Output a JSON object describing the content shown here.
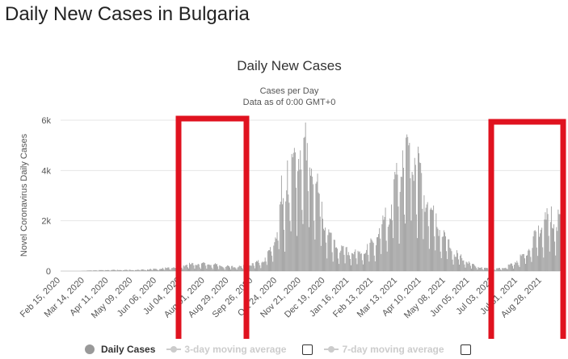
{
  "page": {
    "heading": "Daily New Cases in Bulgaria"
  },
  "chart_data": {
    "type": "bar",
    "title": "Daily New Cases",
    "subtitle_line1": "Cases per Day",
    "subtitle_line2": "Data as of 0:00 GMT+0",
    "ylabel": "Novel Coronavirus Daily Cases",
    "xlabel": "",
    "ylim": [
      0,
      6000
    ],
    "y_ticks": [
      0,
      2000,
      4000,
      6000
    ],
    "y_tick_labels": [
      "0",
      "2k",
      "4k",
      "6k"
    ],
    "x_tick_labels": [
      "Feb 15, 2020",
      "Mar 14, 2020",
      "Apr 11, 2020",
      "May 09, 2020",
      "Jun 06, 2020",
      "Jul 04, 2020",
      "Aug 01, 2020",
      "Aug 29, 2020",
      "Sep 26, 2020",
      "Oct 24, 2020",
      "Nov 21, 2020",
      "Dec 19, 2020",
      "Jan 16, 2021",
      "Feb 13, 2021",
      "Mar 13, 2021",
      "Apr 10, 2021",
      "May 08, 2021",
      "Jun 05, 2021",
      "Jul 03, 2021",
      "Jul 31, 2021",
      "Aug 28, 2021"
    ],
    "start_date": "2020-02-15",
    "x_range": [
      "2020-02-15",
      "2021-09-18"
    ],
    "series": [
      {
        "name": "Daily Cases",
        "color": "#999999",
        "keypoints": [
          [
            "2020-02-15",
            0
          ],
          [
            "2020-03-08",
            0
          ],
          [
            "2020-03-20",
            20
          ],
          [
            "2020-04-15",
            40
          ],
          [
            "2020-05-15",
            40
          ],
          [
            "2020-06-10",
            80
          ],
          [
            "2020-06-25",
            130
          ],
          [
            "2020-07-10",
            220
          ],
          [
            "2020-07-25",
            260
          ],
          [
            "2020-08-10",
            230
          ],
          [
            "2020-08-25",
            160
          ],
          [
            "2020-09-10",
            150
          ],
          [
            "2020-09-25",
            230
          ],
          [
            "2020-10-10",
            400
          ],
          [
            "2020-10-20",
            1000
          ],
          [
            "2020-10-30",
            2200
          ],
          [
            "2020-11-08",
            3300
          ],
          [
            "2020-11-16",
            4000
          ],
          [
            "2020-11-24",
            4300
          ],
          [
            "2020-12-01",
            3900
          ],
          [
            "2020-12-08",
            3000
          ],
          [
            "2020-12-18",
            1700
          ],
          [
            "2020-12-28",
            900
          ],
          [
            "2021-01-10",
            700
          ],
          [
            "2021-01-25",
            600
          ],
          [
            "2021-02-05",
            750
          ],
          [
            "2021-02-15",
            1100
          ],
          [
            "2021-02-25",
            1600
          ],
          [
            "2021-03-08",
            2600
          ],
          [
            "2021-03-18",
            3700
          ],
          [
            "2021-03-26",
            4200
          ],
          [
            "2021-04-02",
            3900
          ],
          [
            "2021-04-12",
            2900
          ],
          [
            "2021-04-24",
            1900
          ],
          [
            "2021-05-05",
            1200
          ],
          [
            "2021-05-20",
            600
          ],
          [
            "2021-06-05",
            250
          ],
          [
            "2021-06-20",
            100
          ],
          [
            "2021-07-05",
            70
          ],
          [
            "2021-07-15",
            120
          ],
          [
            "2021-07-25",
            250
          ],
          [
            "2021-08-05",
            500
          ],
          [
            "2021-08-15",
            900
          ],
          [
            "2021-08-25",
            1400
          ],
          [
            "2021-09-05",
            1800
          ],
          [
            "2021-09-18",
            1800
          ]
        ],
        "spikes": [
          [
            "2020-10-29",
            3800
          ],
          [
            "2020-11-05",
            4400
          ],
          [
            "2020-11-12",
            4700
          ],
          [
            "2020-11-20",
            4800
          ],
          [
            "2020-11-27",
            4400
          ],
          [
            "2021-03-12",
            4300
          ],
          [
            "2021-03-19",
            4800
          ],
          [
            "2021-03-26",
            5000
          ],
          [
            "2021-03-27",
            5100
          ],
          [
            "2021-04-02",
            4500
          ],
          [
            "2021-08-31",
            2050
          ],
          [
            "2021-09-07",
            1950
          ],
          [
            "2021-09-14",
            1750
          ]
        ]
      }
    ],
    "grid": true,
    "legend_position": "bottom",
    "highlight_color": "#e0121f"
  },
  "legend": {
    "items": [
      {
        "label": "Daily Cases",
        "active": true
      },
      {
        "label": "3-day moving average",
        "active": false
      },
      {
        "label": "7-day moving average",
        "active": false
      }
    ]
  }
}
